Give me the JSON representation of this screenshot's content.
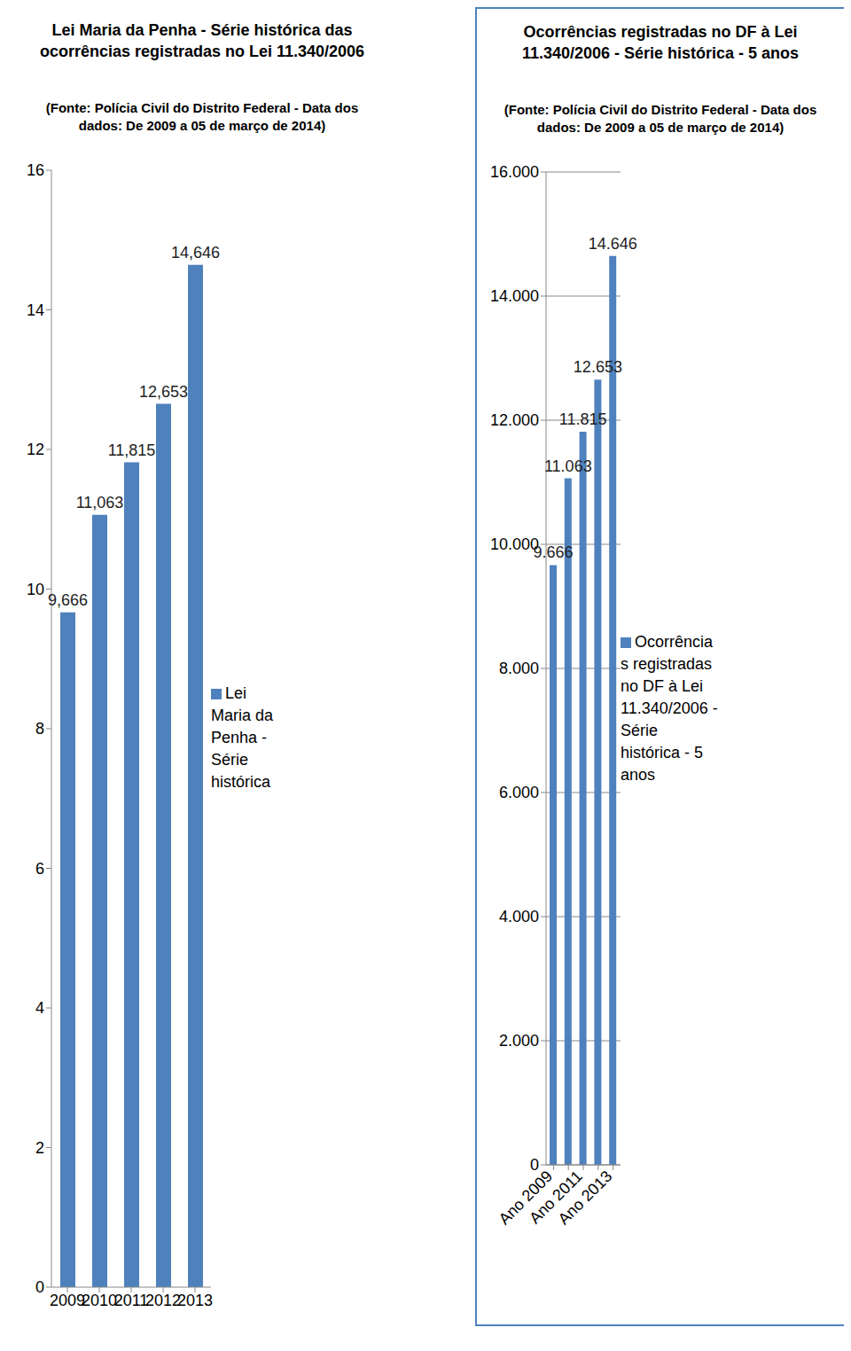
{
  "chart_data": [
    {
      "type": "bar",
      "title": "Lei Maria da Penha - Série histórica das ocorrências registradas no Lei 11.340/2006",
      "subtitle": "(Fonte: Polícia Civil do Distrito Federal - Data dos dados: De 2009 a 05 de março de 2014)",
      "categories": [
        "2009",
        "2010",
        "2011",
        "2012",
        "2013"
      ],
      "series": [
        {
          "name": "Lei Maria da Penha - Série histórica",
          "color": "#4f81bd",
          "values": [
            9.666,
            11.063,
            11.815,
            12.653,
            14.646
          ],
          "value_labels": [
            "9,666",
            "11,063",
            "11,815",
            "12,653",
            "14,646"
          ]
        }
      ],
      "ylim": [
        0,
        16
      ],
      "yticks": [
        0,
        2,
        4,
        6,
        8,
        10,
        12,
        14,
        16
      ],
      "grid": false,
      "legend": "right",
      "data_labels": true
    },
    {
      "type": "bar",
      "title": "Ocorrências registradas no DF à Lei 11.340/2006 - Série histórica - 5 anos",
      "subtitle": "(Fonte: Polícia Civil do Distrito Federal - Data dos dados: De 2009 a 05 de março de 2014)",
      "categories": [
        "Ano 2009",
        null,
        "Ano 2011",
        null,
        "Ano 2013"
      ],
      "series": [
        {
          "name": "Ocorrências registradas no DF à Lei 11.340/2006 - Série histórica - 5 anos",
          "color": "#4f81bd",
          "values": [
            9666,
            11063,
            11815,
            12653,
            14646
          ],
          "value_labels": [
            "9.666",
            "11.063",
            "11.815",
            "12.653",
            "14.646"
          ]
        }
      ],
      "ylim": [
        0,
        16000
      ],
      "yticks": [
        0,
        {
          "value": 2000,
          "label": "2.000"
        },
        {
          "value": 4000,
          "label": "4.000"
        },
        {
          "value": 6000,
          "label": "6.000"
        },
        {
          "value": 8000,
          "label": "8.000"
        },
        {
          "value": 10000,
          "label": "10.000"
        },
        {
          "value": 12000,
          "label": "12.000"
        },
        {
          "value": 14000,
          "label": "14.000"
        },
        {
          "value": 16000,
          "label": "16.000"
        }
      ],
      "grid": true,
      "legend": "right",
      "data_labels": true
    }
  ]
}
